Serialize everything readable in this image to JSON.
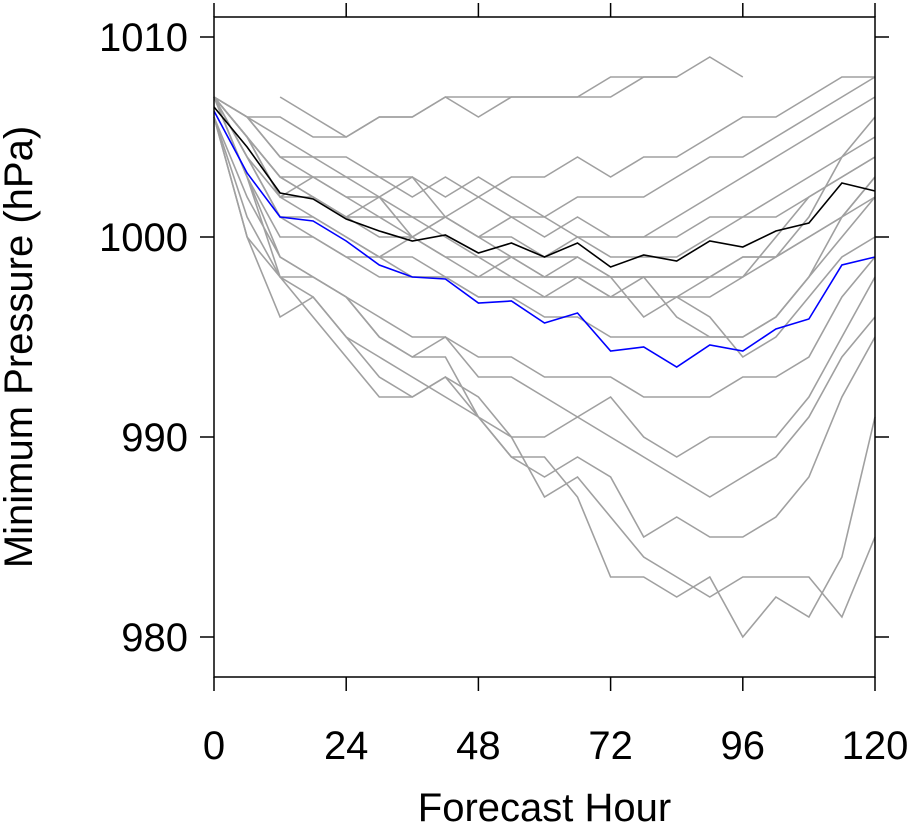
{
  "chart_data": {
    "type": "line",
    "title": "",
    "xlabel": "Forecast Hour",
    "ylabel": "Minimum Pressure (hPa)",
    "xlim": [
      0,
      120
    ],
    "ylim": [
      978,
      1011
    ],
    "x_ticks": [
      0,
      24,
      48,
      72,
      96,
      120
    ],
    "x_tick_labels": [
      "0",
      "24",
      "48",
      "72",
      "96",
      "120"
    ],
    "y_ticks": [
      980,
      990,
      1000,
      1010
    ],
    "y_tick_labels": [
      "980",
      "990",
      "1000",
      "1010"
    ],
    "grid": false,
    "legend": "none",
    "x": [
      0,
      6,
      12,
      18,
      24,
      30,
      36,
      42,
      48,
      54,
      60,
      66,
      72,
      78,
      84,
      90,
      96,
      102,
      108,
      114,
      120
    ],
    "ensemble_color": "#a0a0a0",
    "ensemble_members": [
      [
        1007,
        1006,
        1004,
        1004,
        1004,
        1003,
        1003,
        1002,
        1003,
        1002,
        1001,
        1002,
        1002,
        1002,
        1003,
        1004,
        1004,
        1005,
        1006,
        1007,
        1008
      ],
      [
        1007,
        1006,
        1006,
        1005,
        1005,
        1006,
        1006,
        1007,
        1006,
        1007,
        1007,
        1007,
        1007,
        1008,
        1008,
        1009,
        1008,
        null,
        null,
        null,
        null
      ],
      [
        null,
        null,
        1007,
        1006,
        1005,
        1006,
        1006,
        1007,
        1007,
        1007,
        1007,
        1007,
        1008,
        1008,
        1008,
        null,
        null,
        null,
        null,
        null,
        null
      ],
      [
        1007,
        1005,
        1003,
        1003,
        1003,
        1002,
        1003,
        1001,
        1002,
        1001,
        1001,
        1000,
        1000,
        1000,
        1001,
        1002,
        1003,
        1004,
        1005,
        1006,
        1007
      ],
      [
        1007,
        1005,
        1002,
        1003,
        1002,
        1002,
        1001,
        1001,
        1000,
        1000,
        999,
        1000,
        999,
        999,
        999,
        1000,
        1001,
        1001,
        1002,
        1003,
        1004
      ],
      [
        1007,
        1006,
        1004,
        1003,
        1002,
        1001,
        1000,
        1001,
        1000,
        999,
        999,
        999,
        998,
        998,
        998,
        998,
        999,
        999,
        1000,
        1001,
        1002
      ],
      [
        1007,
        1005,
        1003,
        1002,
        1001,
        1001,
        1001,
        1000,
        999,
        999,
        998,
        999,
        998,
        998,
        998,
        998,
        998,
        1000,
        1002,
        1003,
        1004
      ],
      [
        1007,
        1004,
        1001,
        1001,
        1000,
        999,
        999,
        998,
        998,
        998,
        997,
        998,
        997,
        997,
        997,
        998,
        999,
        999,
        1000,
        1001,
        1003
      ],
      [
        1007,
        1004,
        1001,
        1000,
        999,
        999,
        998,
        998,
        997,
        997,
        997,
        997,
        997,
        997,
        997,
        997,
        998,
        999,
        1001,
        1004,
        1006
      ],
      [
        1007,
        1003,
        1000,
        1000,
        999,
        998,
        998,
        998,
        997,
        997,
        996,
        996,
        995,
        995,
        995,
        995,
        995,
        996,
        998,
        1001,
        1003
      ],
      [
        1007,
        1003,
        999,
        998,
        997,
        996,
        995,
        995,
        994,
        994,
        993,
        993,
        993,
        992,
        992,
        992,
        993,
        993,
        994,
        997,
        999
      ],
      [
        1007,
        1003,
        998,
        998,
        997,
        995,
        994,
        995,
        993,
        993,
        992,
        991,
        992,
        990,
        989,
        990,
        990,
        990,
        992,
        995,
        998
      ],
      [
        1006,
        1001,
        998,
        997,
        995,
        994,
        993,
        992,
        991,
        990,
        990,
        991,
        990,
        989,
        988,
        987,
        988,
        989,
        991,
        994,
        996
      ],
      [
        1006,
        1000,
        996,
        997,
        995,
        993,
        992,
        993,
        991,
        989,
        988,
        989,
        988,
        985,
        986,
        985,
        985,
        986,
        988,
        992,
        995
      ],
      [
        1006,
        1000,
        998,
        996,
        994,
        992,
        992,
        993,
        992,
        990,
        987,
        988,
        986,
        984,
        983,
        982,
        983,
        983,
        983,
        981,
        985
      ],
      [
        1006,
        1002,
        999,
        998,
        997,
        995,
        994,
        994,
        991,
        989,
        989,
        987,
        983,
        983,
        982,
        983,
        980,
        982,
        981,
        984,
        991
      ],
      [
        1007,
        1005,
        1002,
        1002,
        1001,
        1000,
        1000,
        999,
        999,
        998,
        998,
        998,
        997,
        998,
        996,
        995,
        995,
        996,
        998,
        1000,
        1002
      ],
      [
        1007,
        1006,
        1005,
        1004,
        1003,
        1003,
        1002,
        1003,
        1002,
        1003,
        1003,
        1004,
        1003,
        1004,
        1004,
        1005,
        1006,
        1006,
        1007,
        1008,
        1008
      ],
      [
        1007,
        1005,
        1003,
        1002,
        1001,
        1002,
        1000,
        1001,
        1000,
        1001,
        1000,
        1001,
        1000,
        1000,
        1000,
        1001,
        1001,
        1002,
        1003,
        1004,
        1005
      ],
      [
        1007,
        1004,
        1002,
        1001,
        1000,
        999,
        1000,
        999,
        998,
        999,
        998,
        998,
        998,
        996,
        997,
        996,
        994,
        995,
        997,
        999,
        1000
      ]
    ],
    "series": [
      {
        "color": "#000000",
        "values": [
          1006.5,
          1004.5,
          1002.2,
          1001.9,
          1000.9,
          1000.3,
          999.8,
          1000.1,
          999.2,
          999.7,
          999.0,
          999.7,
          998.5,
          999.1,
          998.8,
          999.8,
          999.5,
          1000.3,
          1000.7,
          1002.7,
          1002.3
        ]
      },
      {
        "color": "#0000ff",
        "values": [
          1006.3,
          1003.2,
          1001.0,
          1000.8,
          999.8,
          998.6,
          998.0,
          997.9,
          996.7,
          996.8,
          995.7,
          996.2,
          994.3,
          994.5,
          993.5,
          994.6,
          994.3,
          995.4,
          995.9,
          998.6,
          999.0
        ]
      }
    ]
  }
}
